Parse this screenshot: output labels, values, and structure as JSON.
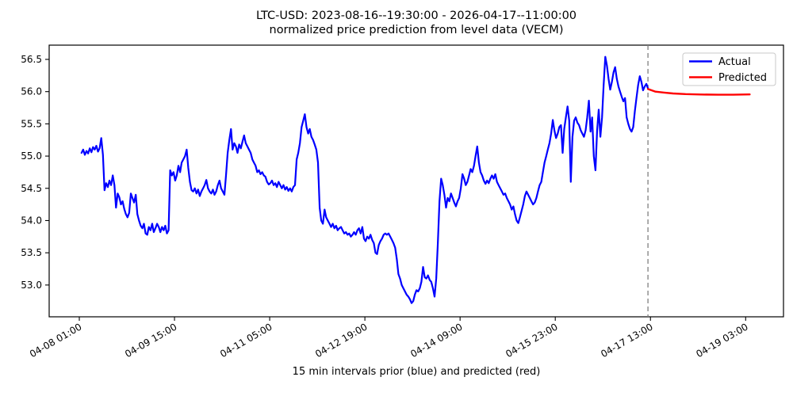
{
  "chart_data": {
    "type": "line",
    "title": "LTC-USD: 2023-08-16--19:30:00 - 2026-04-17--11:00:00",
    "subtitle": "normalized price prediction from level data (VECM)",
    "xlabel": "15 min intervals prior (blue) and predicted (red)",
    "grid": false,
    "legend": {
      "position": "upper right",
      "entries": [
        {
          "label": "Actual",
          "color": "#0000ff"
        },
        {
          "label": "Predicted",
          "color": "#ff0000"
        }
      ]
    },
    "x_axis": {
      "unit": "hours since 04-08 01:00, 15 min interval data",
      "lim": [
        -12.03,
        281.1
      ],
      "tick_hours": [
        0,
        38,
        76,
        114,
        152,
        190,
        228,
        266
      ],
      "tick_labels": [
        "04-08 01:00",
        "04-09 15:00",
        "04-11 05:00",
        "04-12 19:00",
        "04-14 09:00",
        "04-15 23:00",
        "04-17 13:00",
        "04-19 03:00"
      ],
      "tick_label_rotation_deg": 30
    },
    "y_axis": {
      "lim": [
        52.507,
        56.721
      ],
      "tick_values": [
        53.0,
        53.5,
        54.0,
        54.5,
        55.0,
        55.5,
        56.0,
        56.5
      ],
      "tick_labels": [
        "53.0",
        "53.5",
        "54.0",
        "54.5",
        "55.0",
        "55.5",
        "56.0",
        "56.5"
      ]
    },
    "forecast_start_line": {
      "t": 227.0,
      "style": "dashed",
      "color": "#808080"
    },
    "series": [
      {
        "name": "Actual",
        "color": "#0000ff",
        "t_start": 0.9,
        "t_step": 0.6554,
        "values": [
          55.05,
          55.1,
          55.02,
          55.08,
          55.04,
          55.12,
          55.06,
          55.14,
          55.1,
          55.16,
          55.07,
          55.12,
          55.28,
          55.02,
          54.47,
          54.58,
          54.52,
          54.62,
          54.55,
          54.7,
          54.55,
          54.2,
          54.42,
          54.36,
          54.25,
          54.3,
          54.18,
          54.1,
          54.05,
          54.12,
          54.42,
          54.35,
          54.28,
          54.4,
          54.1,
          54.0,
          53.92,
          53.88,
          53.95,
          53.8,
          53.78,
          53.9,
          53.85,
          53.95,
          53.82,
          53.88,
          53.95,
          53.9,
          53.82,
          53.9,
          53.85,
          53.92,
          53.8,
          53.85,
          54.78,
          54.7,
          54.75,
          54.62,
          54.7,
          54.85,
          54.75,
          54.9,
          54.95,
          55.0,
          55.1,
          54.82,
          54.6,
          54.47,
          54.45,
          54.5,
          54.42,
          54.48,
          54.38,
          54.45,
          54.5,
          54.55,
          54.63,
          54.5,
          54.45,
          54.42,
          54.48,
          54.4,
          54.45,
          54.55,
          54.62,
          54.5,
          54.45,
          54.4,
          54.7,
          55.05,
          55.25,
          55.42,
          55.1,
          55.2,
          55.15,
          55.05,
          55.18,
          55.12,
          55.22,
          55.32,
          55.2,
          55.15,
          55.1,
          55.05,
          54.95,
          54.9,
          54.85,
          54.75,
          54.78,
          54.72,
          54.75,
          54.7,
          54.68,
          54.6,
          54.56,
          54.58,
          54.62,
          54.55,
          54.58,
          54.52,
          54.6,
          54.55,
          54.5,
          54.55,
          54.48,
          54.52,
          54.46,
          54.5,
          54.45,
          54.52,
          54.55,
          54.95,
          55.05,
          55.2,
          55.45,
          55.55,
          55.65,
          55.45,
          55.35,
          55.42,
          55.3,
          55.25,
          55.18,
          55.1,
          54.9,
          54.2,
          54.0,
          53.95,
          54.17,
          54.05,
          54.0,
          53.95,
          53.9,
          53.95,
          53.88,
          53.92,
          53.85,
          53.88,
          53.9,
          53.85,
          53.8,
          53.82,
          53.78,
          53.8,
          53.75,
          53.78,
          53.82,
          53.78,
          53.85,
          53.88,
          53.8,
          53.9,
          53.72,
          53.68,
          53.75,
          53.72,
          53.78,
          53.7,
          53.65,
          53.5,
          53.48,
          53.62,
          53.68,
          53.72,
          53.78,
          53.8,
          53.78,
          53.8,
          53.75,
          53.7,
          53.65,
          53.58,
          53.4,
          53.17,
          53.1,
          53.0,
          52.95,
          52.9,
          52.85,
          52.82,
          52.78,
          52.72,
          52.75,
          52.85,
          52.92,
          52.9,
          52.95,
          53.05,
          53.28,
          53.12,
          53.1,
          53.15,
          53.08,
          53.05,
          52.95,
          52.82,
          53.1,
          53.64,
          54.3,
          54.65,
          54.55,
          54.4,
          54.2,
          54.35,
          54.3,
          54.42,
          54.35,
          54.28,
          54.22,
          54.3,
          54.35,
          54.5,
          54.72,
          54.65,
          54.55,
          54.6,
          54.7,
          54.8,
          54.75,
          54.85,
          55.0,
          55.15,
          54.9,
          54.75,
          54.7,
          54.62,
          54.57,
          54.62,
          54.58,
          54.65,
          54.7,
          54.65,
          54.72,
          54.6,
          54.55,
          54.5,
          54.45,
          54.4,
          54.42,
          54.35,
          54.3,
          54.25,
          54.17,
          54.22,
          54.1,
          54.0,
          53.96,
          54.05,
          54.15,
          54.25,
          54.38,
          54.45,
          54.4,
          54.35,
          54.3,
          54.25,
          54.28,
          54.35,
          54.45,
          54.55,
          54.6,
          54.75,
          54.9,
          55.0,
          55.1,
          55.2,
          55.35,
          55.56,
          55.4,
          55.28,
          55.35,
          55.45,
          55.48,
          55.05,
          55.42,
          55.6,
          55.77,
          55.55,
          54.6,
          55.3,
          55.55,
          55.6,
          55.52,
          55.48,
          55.4,
          55.35,
          55.3,
          55.4,
          55.6,
          55.86,
          55.38,
          55.6,
          55.0,
          54.78,
          55.4,
          55.72,
          55.3,
          55.6,
          56.1,
          56.54,
          56.4,
          56.2,
          56.03,
          56.15,
          56.3,
          56.38,
          56.2,
          56.08,
          56.0,
          55.92,
          55.85,
          55.9,
          55.6,
          55.5,
          55.42,
          55.38,
          55.45,
          55.7,
          55.9,
          56.1,
          56.24,
          56.15,
          56.02,
          56.08,
          56.12,
          56.05
        ]
      },
      {
        "name": "Predicted",
        "color": "#ff0000",
        "points": [
          [
            227.0,
            56.04
          ],
          [
            230.0,
            56.0
          ],
          [
            233.5,
            55.985
          ],
          [
            237.0,
            55.972
          ],
          [
            242.0,
            55.962
          ],
          [
            248.0,
            55.955
          ],
          [
            255.0,
            55.952
          ],
          [
            261.0,
            55.952
          ],
          [
            267.6,
            55.957
          ]
        ]
      }
    ]
  },
  "colors": {
    "actual_line": "#0000ff",
    "predicted_line": "#ff0000",
    "forecast_start_line": "#808080",
    "axis": "#000000",
    "legend_border": "#c8c8c8",
    "background": "#ffffff"
  }
}
